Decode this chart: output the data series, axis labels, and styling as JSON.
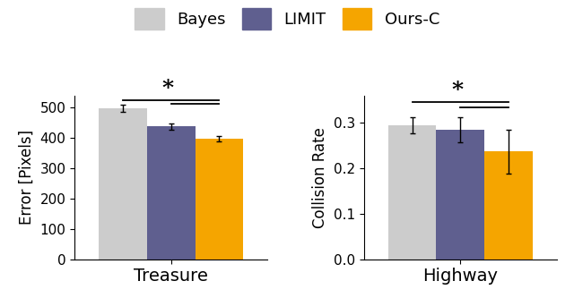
{
  "treasure_values": [
    498,
    437,
    397
  ],
  "treasure_errors": [
    12,
    10,
    8
  ],
  "highway_values": [
    0.294,
    0.284,
    0.237
  ],
  "highway_errors": [
    0.018,
    0.028,
    0.048
  ],
  "colors": [
    "#cccccc",
    "#5f5f8f",
    "#f5a500"
  ],
  "legend_labels": [
    "Bayes",
    "LIMIT",
    "Ours-C"
  ],
  "treasure_xlabel": "Treasure",
  "highway_xlabel": "Highway",
  "treasure_ylabel": "Error [Pixels]",
  "highway_ylabel": "Collision Rate",
  "treasure_ylim": [
    0,
    540
  ],
  "highway_ylim": [
    0.0,
    0.36
  ],
  "treasure_yticks": [
    0,
    100,
    200,
    300,
    400,
    500
  ],
  "highway_yticks": [
    0.0,
    0.1,
    0.2,
    0.3
  ],
  "bar_width": 0.32
}
